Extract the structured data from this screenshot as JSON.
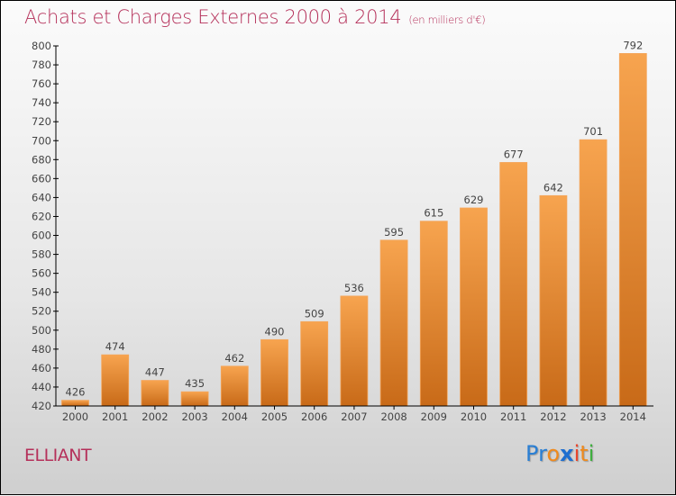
{
  "header": {
    "title": "Achats et Charges Externes 2000 à 2014",
    "subtitle": "(en milliers d'€)"
  },
  "footer": {
    "town": "ELLIANT",
    "logo_letters": [
      {
        "char": "P",
        "color": "#2a7fd4"
      },
      {
        "char": "r",
        "color": "#2a7fd4"
      },
      {
        "char": "o",
        "color": "#f08a1c"
      },
      {
        "char": "x",
        "color": "#1f6fd0"
      },
      {
        "char": "i",
        "color": "#e8452c"
      },
      {
        "char": "t",
        "color": "#f08a1c"
      },
      {
        "char": "i",
        "color": "#3fae3f"
      }
    ]
  },
  "colors": {
    "title": "#b5305a",
    "bar_top": "#f7a44f",
    "bar_bottom": "#c86a18"
  },
  "chart_data": {
    "type": "bar",
    "title": "Achats et Charges Externes 2000 à 2014",
    "subtitle": "(en milliers d'€)",
    "xlabel": "",
    "ylabel": "",
    "categories": [
      "2000",
      "2001",
      "2002",
      "2003",
      "2004",
      "2005",
      "2006",
      "2007",
      "2008",
      "2009",
      "2010",
      "2011",
      "2012",
      "2013",
      "2014"
    ],
    "values": [
      426,
      474,
      447,
      435,
      462,
      490,
      509,
      536,
      595,
      615,
      629,
      677,
      642,
      701,
      792
    ],
    "ylim": [
      420,
      800
    ],
    "yticks": [
      420,
      440,
      460,
      480,
      500,
      520,
      540,
      560,
      580,
      600,
      620,
      640,
      660,
      680,
      700,
      720,
      740,
      760,
      780,
      800
    ],
    "grid": false,
    "legend": "none"
  }
}
